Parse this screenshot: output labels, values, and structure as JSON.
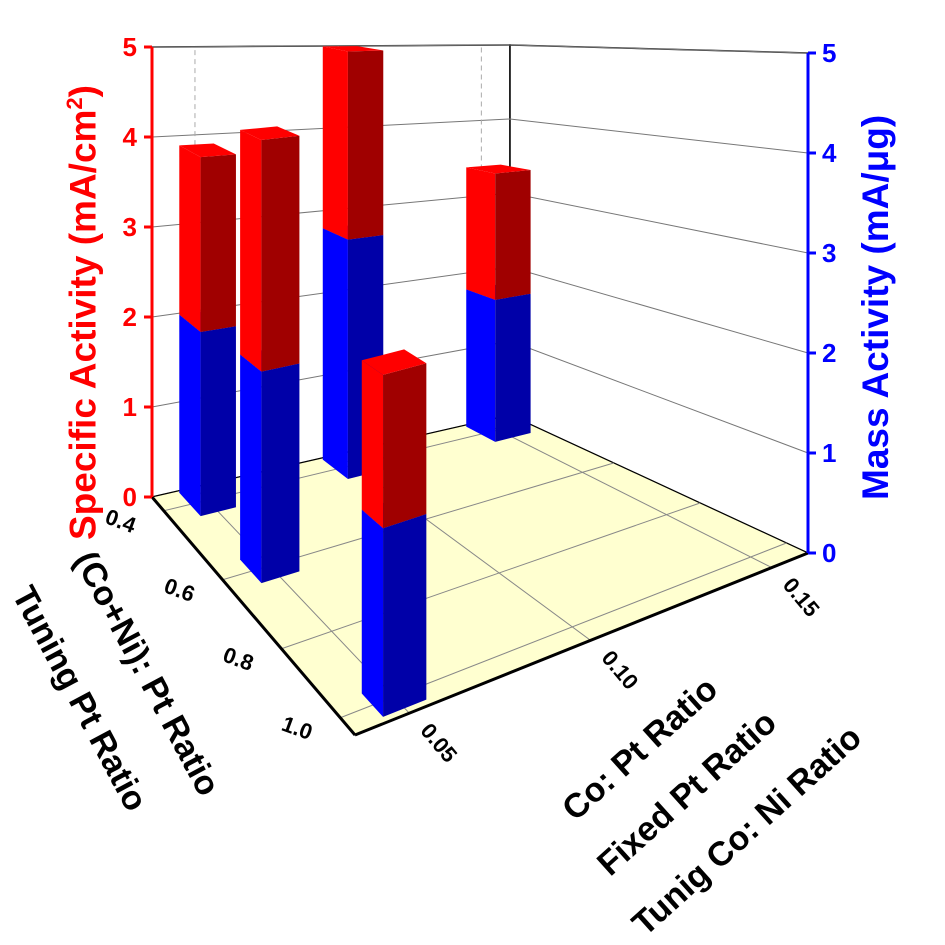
{
  "chart_data": {
    "type": "bar3d-stacked",
    "z_left_label": "Specific Activity (mA/cm",
    "z_left_label_sup": "2",
    "z_left_label_end": ")",
    "z_right_label": "Mass Activity (mA/μg)",
    "y_axis_labels": [
      "(Co+Ni): Pt Ratio",
      "Tuning Pt Ratio"
    ],
    "x_axis_labels": [
      "Co: Pt Ratio",
      "Fixed Pt Ratio",
      "Tunig Co: Ni Ratio"
    ],
    "z_left_range": [
      0,
      5
    ],
    "z_right_range": [
      0,
      5
    ],
    "z_ticks": [
      "0",
      "1",
      "2",
      "3",
      "4",
      "5"
    ],
    "y_ticks": [
      "0.4",
      "0.6",
      "0.8",
      "1.0"
    ],
    "x_ticks": [
      "0.05",
      "0.10",
      "0.15"
    ],
    "colors": {
      "specific": "#ff0000",
      "specific_side": "#a00000",
      "mass": "#0000ff",
      "mass_side": "#0000a8",
      "floor": "#ffffd0",
      "left_axis": "#ff0000",
      "right_axis": "#0000ff"
    },
    "bars": [
      {
        "x": 0.05,
        "y": 0.4,
        "specific_activity": 3.9,
        "mass_activity": 2.0
      },
      {
        "x": 0.05,
        "y": 0.6,
        "specific_activity": 4.4,
        "mass_activity": 2.1
      },
      {
        "x": 0.05,
        "y": 1.0,
        "specific_activity": 2.9,
        "mass_activity": 1.6
      },
      {
        "x": 0.1,
        "y": 0.4,
        "specific_activity": 5.0,
        "mass_activity": 2.8
      },
      {
        "x": 0.15,
        "y": 0.4,
        "specific_activity": 3.4,
        "mass_activity": 1.8
      }
    ],
    "grid": true
  }
}
